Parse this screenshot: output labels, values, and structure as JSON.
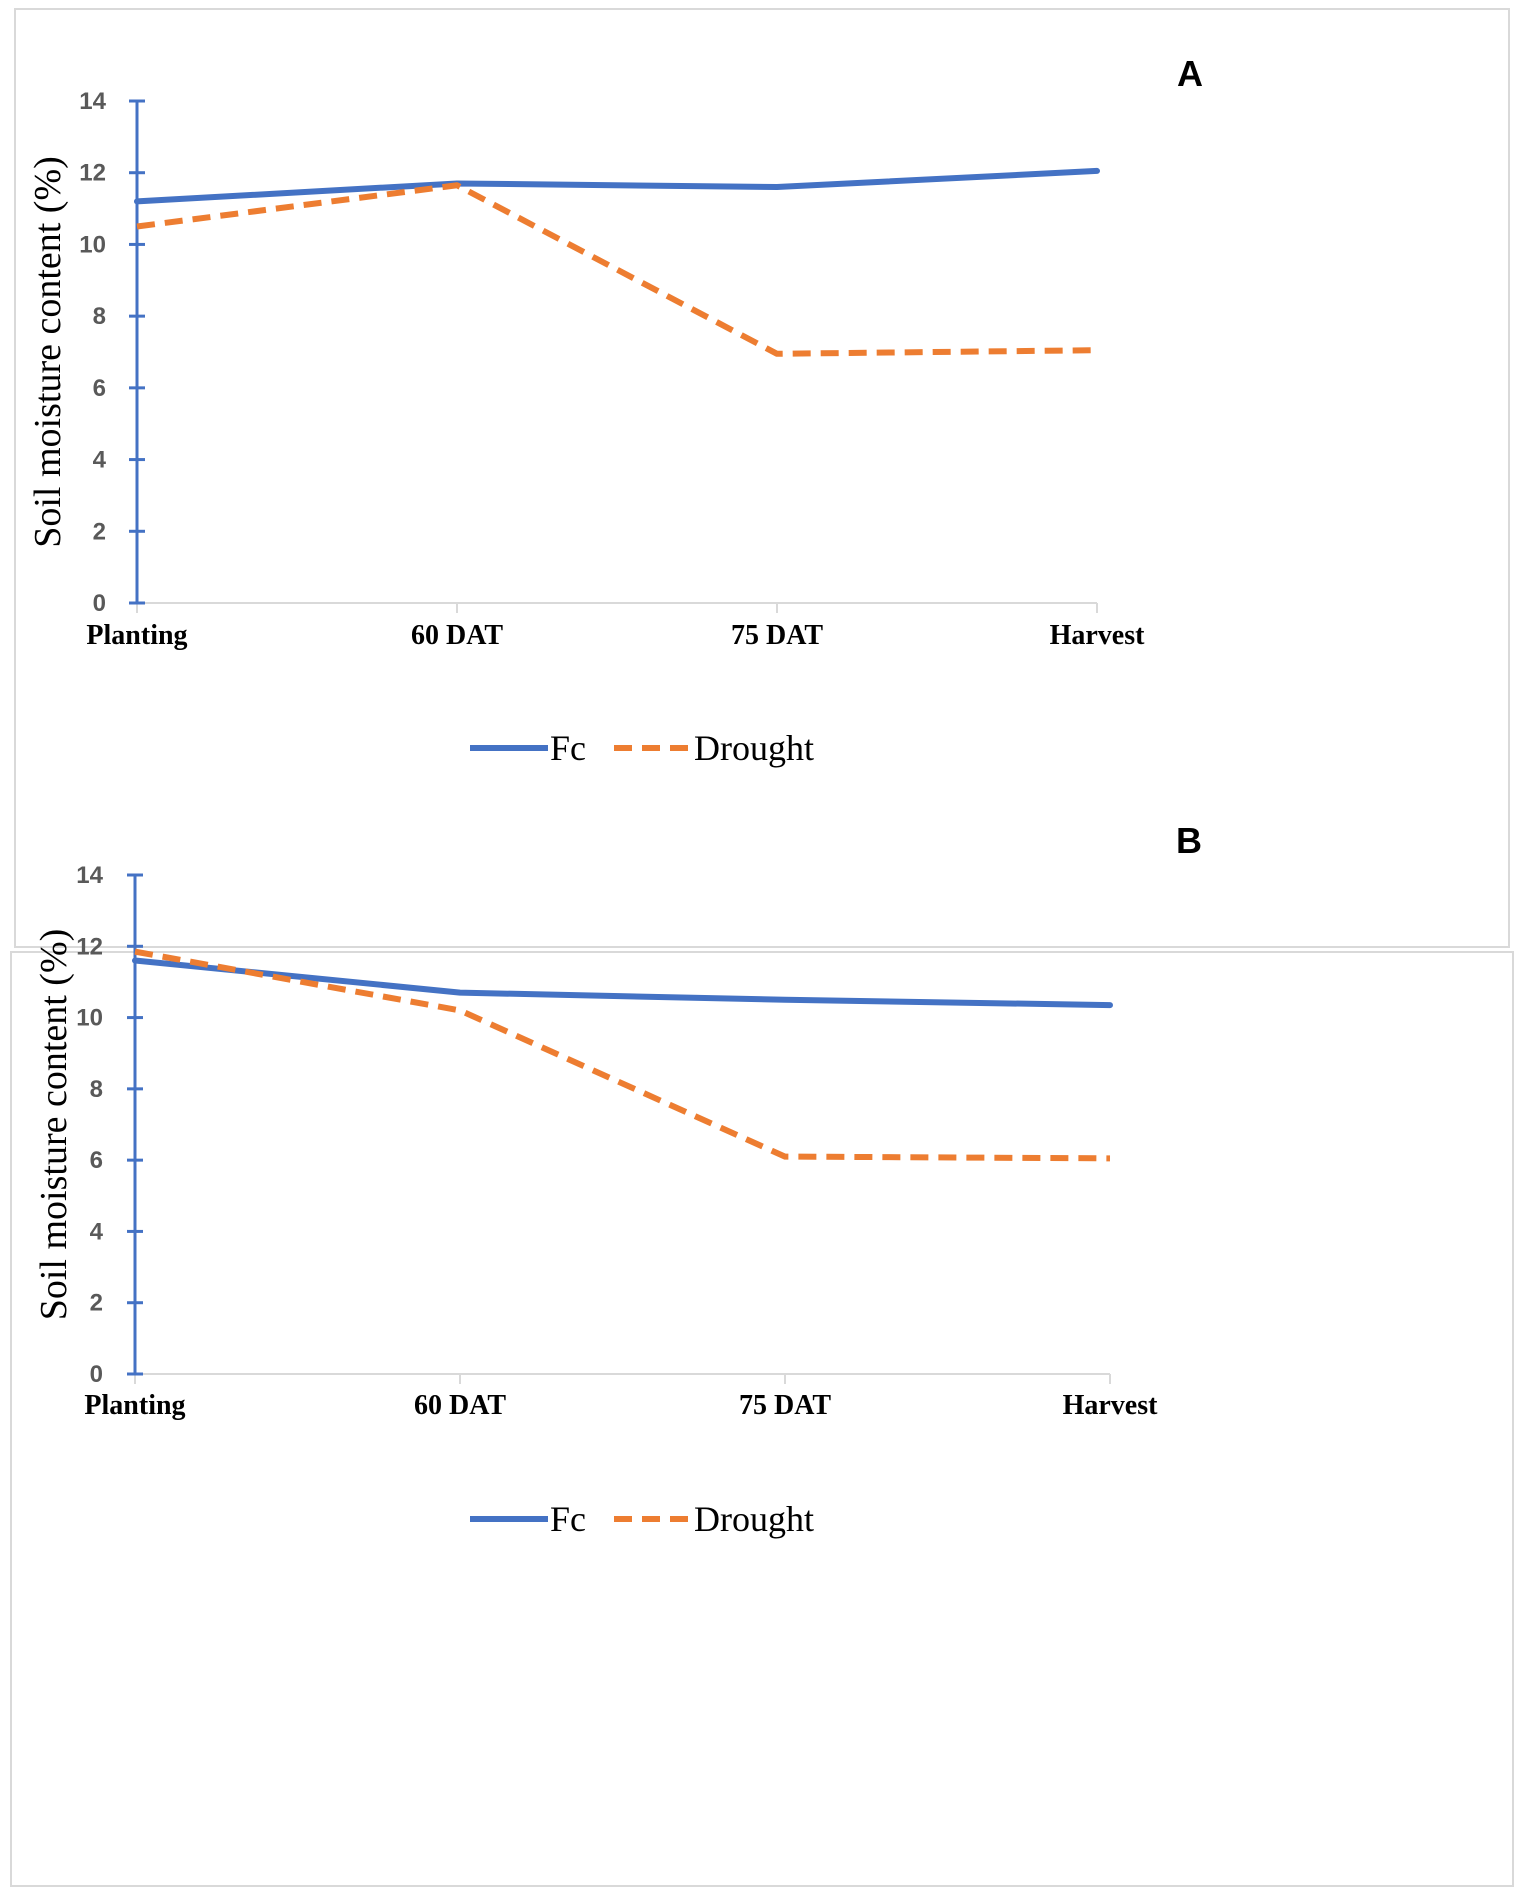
{
  "chart_data": [
    {
      "type": "line",
      "panel_label": "A",
      "categories": [
        "Planting",
        "60 DAT",
        "75 DAT",
        "Harvest"
      ],
      "series": [
        {
          "name": "Fc",
          "color": "#4472C4",
          "dash": "solid",
          "values": [
            11.2,
            11.7,
            11.6,
            12.05
          ]
        },
        {
          "name": "Drought",
          "color": "#ED7D31",
          "dash": "dashed",
          "values": [
            10.5,
            11.65,
            6.95,
            7.05
          ]
        }
      ],
      "ylabel": "Soil moisture content (%)",
      "xlabel": "",
      "ylim": [
        0,
        14
      ],
      "yticks": [
        "0",
        "2",
        "4",
        "6",
        "8",
        "10",
        "12",
        "14"
      ],
      "legend": "bottom-center"
    },
    {
      "type": "line",
      "panel_label": "B",
      "categories": [
        "Planting",
        "60 DAT",
        "75 DAT",
        "Harvest"
      ],
      "series": [
        {
          "name": "Fc",
          "color": "#4472C4",
          "dash": "solid",
          "values": [
            11.6,
            10.7,
            10.5,
            10.35
          ]
        },
        {
          "name": "Drought",
          "color": "#ED7D31",
          "dash": "dashed",
          "values": [
            11.85,
            10.2,
            6.1,
            6.05
          ]
        }
      ],
      "ylabel": "Soil moisture content (%)",
      "xlabel": "",
      "ylim": [
        0,
        14
      ],
      "yticks": [
        "0",
        "2",
        "4",
        "6",
        "8",
        "10",
        "12",
        "14"
      ],
      "legend": "bottom-center"
    }
  ],
  "style": {
    "axis_color": "#4472C4",
    "category_axis_color": "#d9d9d9"
  }
}
